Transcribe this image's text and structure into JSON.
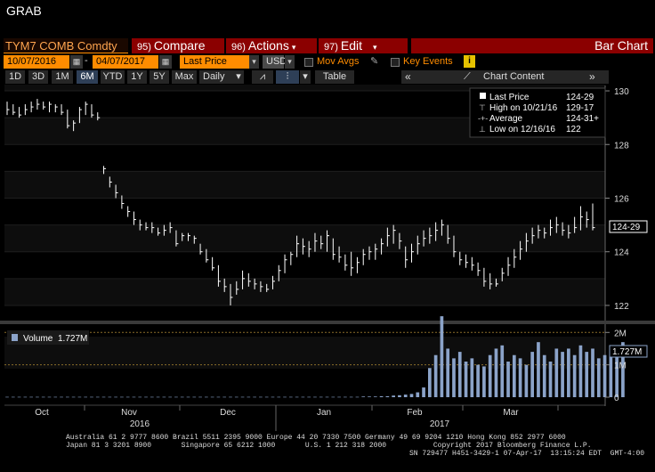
{
  "window": {
    "title": "GRAB"
  },
  "toolbar": {
    "security": "TYM7 COMB Comdty",
    "compare_num": "95)",
    "compare": "Compare",
    "actions_num": "96)",
    "actions": "Actions",
    "edit_num": "97)",
    "edit": "Edit",
    "view": "Bar Chart"
  },
  "controls": {
    "start_date": "10/07/2016",
    "end_date": "04/07/2017",
    "field": "Last Price",
    "currency": "USD",
    "mov_avgs": "Mov Avgs",
    "key_events": "Key Events",
    "info": "i",
    "ranges": [
      "1D",
      "3D",
      "1M",
      "6M",
      "YTD",
      "1Y",
      "5Y",
      "Max"
    ],
    "selected_range": "6M",
    "frequency": "Daily",
    "table": "Table",
    "chart_content": "Chart Content"
  },
  "legend": {
    "last_price_label": "Last Price",
    "last_price_value": "124-29",
    "high_label": "High on 10/21/16",
    "high_value": "129-17",
    "average_label": "Average",
    "average_value": "124-31+",
    "low_label": "Low on 12/16/16",
    "low_value": "122",
    "last_price_tag": "124-29"
  },
  "volume": {
    "label": "Volume",
    "value": "1.727M",
    "tag": "1.727M"
  },
  "footer": {
    "line1": "Australia 61 2 9777 8600 Brazil 5511 2395 9000 Europe 44 20 7330 7500 Germany 49 69 9204 1210 Hong Kong 852 2977 6000",
    "line2": "Japan 81 3 3201 8900       Singapore 65 6212 1000       U.S. 1 212 318 2000           Copyright 2017 Bloomberg Finance L.P.",
    "line3": "SN 729477 H451-3429-1 07-Apr-17  13:15:24 EDT  GMT-4:00"
  },
  "colors": {
    "orange": "#ff8c00",
    "red": "#8b0000",
    "volume_bar": "#8ba3c9",
    "price_bar": "#ffffff"
  },
  "chart_data": {
    "type": "bar",
    "title": "",
    "price_axis": {
      "ticks": [
        "130",
        "128",
        "126",
        "124",
        "122"
      ],
      "ylim": [
        121.5,
        130.2
      ]
    },
    "volume_axis": {
      "ticks": [
        "2M",
        "1M",
        "0"
      ],
      "ylim": [
        0,
        2.2
      ]
    },
    "x_tick_labels": [
      "Oct",
      "Nov",
      "Dec",
      "Jan",
      "Feb",
      "Mar"
    ],
    "year_labels": [
      "2016",
      "2017"
    ],
    "price_series": [
      {
        "h": 129.6,
        "l": 129.1,
        "c": 129.3
      },
      {
        "h": 129.5,
        "l": 129.1,
        "c": 129.2
      },
      {
        "h": 129.4,
        "l": 129.0,
        "c": 129.1
      },
      {
        "h": 129.5,
        "l": 129.1,
        "c": 129.3
      },
      {
        "h": 129.6,
        "l": 129.2,
        "c": 129.4
      },
      {
        "h": 129.7,
        "l": 129.3,
        "c": 129.5
      },
      {
        "h": 129.6,
        "l": 129.3,
        "c": 129.4
      },
      {
        "h": 129.6,
        "l": 129.2,
        "c": 129.5
      },
      {
        "h": 129.5,
        "l": 129.2,
        "c": 129.4
      },
      {
        "h": 129.5,
        "l": 129.1,
        "c": 129.2
      },
      {
        "h": 129.3,
        "l": 128.6,
        "c": 128.7
      },
      {
        "h": 128.9,
        "l": 128.5,
        "c": 128.8
      },
      {
        "h": 129.4,
        "l": 128.8,
        "c": 129.3
      },
      {
        "h": 129.6,
        "l": 129.1,
        "c": 129.5
      },
      {
        "h": 129.5,
        "l": 129.0,
        "c": 129.1
      },
      {
        "h": 129.2,
        "l": 128.9,
        "c": 129.0
      },
      {
        "h": 127.2,
        "l": 126.9,
        "c": 127.1
      },
      {
        "h": 126.8,
        "l": 126.4,
        "c": 126.6
      },
      {
        "h": 126.5,
        "l": 126.0,
        "c": 126.2
      },
      {
        "h": 126.1,
        "l": 125.6,
        "c": 125.8
      },
      {
        "h": 125.7,
        "l": 125.3,
        "c": 125.5
      },
      {
        "h": 125.5,
        "l": 125.0,
        "c": 125.2
      },
      {
        "h": 125.2,
        "l": 124.8,
        "c": 125.0
      },
      {
        "h": 125.1,
        "l": 124.8,
        "c": 124.9
      },
      {
        "h": 125.1,
        "l": 124.7,
        "c": 124.9
      },
      {
        "h": 124.9,
        "l": 124.6,
        "c": 124.7
      },
      {
        "h": 125.0,
        "l": 124.6,
        "c": 124.8
      },
      {
        "h": 125.1,
        "l": 124.7,
        "c": 124.9
      },
      {
        "h": 124.8,
        "l": 124.2,
        "c": 124.3
      },
      {
        "h": 124.7,
        "l": 124.4,
        "c": 124.6
      },
      {
        "h": 124.7,
        "l": 124.4,
        "c": 124.6
      },
      {
        "h": 124.6,
        "l": 124.3,
        "c": 124.5
      },
      {
        "h": 124.3,
        "l": 123.9,
        "c": 124.0
      },
      {
        "h": 124.1,
        "l": 123.6,
        "c": 123.7
      },
      {
        "h": 123.8,
        "l": 123.3,
        "c": 123.4
      },
      {
        "h": 123.5,
        "l": 122.7,
        "c": 122.9
      },
      {
        "h": 123.0,
        "l": 122.5,
        "c": 122.7
      },
      {
        "h": 122.8,
        "l": 122.0,
        "c": 122.3
      },
      {
        "h": 122.9,
        "l": 122.4,
        "c": 122.6
      },
      {
        "h": 123.3,
        "l": 122.6,
        "c": 123.0
      },
      {
        "h": 123.2,
        "l": 122.7,
        "c": 122.9
      },
      {
        "h": 123.0,
        "l": 122.6,
        "c": 122.8
      },
      {
        "h": 122.9,
        "l": 122.5,
        "c": 122.7
      },
      {
        "h": 122.8,
        "l": 122.5,
        "c": 122.6
      },
      {
        "h": 123.1,
        "l": 122.6,
        "c": 122.9
      },
      {
        "h": 123.5,
        "l": 122.9,
        "c": 123.3
      },
      {
        "h": 123.9,
        "l": 123.2,
        "c": 123.7
      },
      {
        "h": 124.0,
        "l": 123.5,
        "c": 123.9
      },
      {
        "h": 124.6,
        "l": 123.8,
        "c": 124.3
      },
      {
        "h": 124.5,
        "l": 123.9,
        "c": 124.2
      },
      {
        "h": 124.4,
        "l": 123.8,
        "c": 124.1
      },
      {
        "h": 124.7,
        "l": 124.0,
        "c": 124.4
      },
      {
        "h": 124.6,
        "l": 124.1,
        "c": 124.3
      },
      {
        "h": 124.8,
        "l": 124.0,
        "c": 124.6
      },
      {
        "h": 124.5,
        "l": 123.7,
        "c": 123.9
      },
      {
        "h": 124.2,
        "l": 123.6,
        "c": 123.8
      },
      {
        "h": 123.9,
        "l": 123.3,
        "c": 123.5
      },
      {
        "h": 124.0,
        "l": 123.1,
        "c": 123.4
      },
      {
        "h": 123.8,
        "l": 123.2,
        "c": 123.6
      },
      {
        "h": 124.1,
        "l": 123.5,
        "c": 123.9
      },
      {
        "h": 124.2,
        "l": 123.7,
        "c": 124.0
      },
      {
        "h": 124.3,
        "l": 123.7,
        "c": 124.1
      },
      {
        "h": 124.5,
        "l": 123.9,
        "c": 124.3
      },
      {
        "h": 124.9,
        "l": 124.2,
        "c": 124.6
      },
      {
        "h": 125.0,
        "l": 124.3,
        "c": 124.8
      },
      {
        "h": 124.7,
        "l": 124.1,
        "c": 124.4
      },
      {
        "h": 124.2,
        "l": 123.4,
        "c": 123.7
      },
      {
        "h": 124.3,
        "l": 123.6,
        "c": 124.0
      },
      {
        "h": 124.6,
        "l": 123.9,
        "c": 124.3
      },
      {
        "h": 124.8,
        "l": 124.2,
        "c": 124.5
      },
      {
        "h": 124.9,
        "l": 124.3,
        "c": 124.6
      },
      {
        "h": 125.1,
        "l": 124.4,
        "c": 124.8
      },
      {
        "h": 125.2,
        "l": 124.6,
        "c": 125.0
      },
      {
        "h": 125.0,
        "l": 124.3,
        "c": 124.5
      },
      {
        "h": 124.6,
        "l": 123.8,
        "c": 124.0
      },
      {
        "h": 124.0,
        "l": 123.5,
        "c": 123.7
      },
      {
        "h": 123.9,
        "l": 123.4,
        "c": 123.6
      },
      {
        "h": 123.8,
        "l": 123.3,
        "c": 123.5
      },
      {
        "h": 123.6,
        "l": 123.1,
        "c": 123.3
      },
      {
        "h": 123.4,
        "l": 122.7,
        "c": 122.9
      },
      {
        "h": 123.2,
        "l": 122.6,
        "c": 122.8
      },
      {
        "h": 123.0,
        "l": 122.7,
        "c": 122.8
      },
      {
        "h": 123.4,
        "l": 122.9,
        "c": 123.2
      },
      {
        "h": 123.8,
        "l": 123.1,
        "c": 123.5
      },
      {
        "h": 124.1,
        "l": 123.4,
        "c": 123.8
      },
      {
        "h": 124.4,
        "l": 123.7,
        "c": 124.1
      },
      {
        "h": 124.7,
        "l": 124.0,
        "c": 124.4
      },
      {
        "h": 124.9,
        "l": 124.3,
        "c": 124.6
      },
      {
        "h": 125.0,
        "l": 124.5,
        "c": 124.8
      },
      {
        "h": 124.9,
        "l": 124.5,
        "c": 124.7
      },
      {
        "h": 125.2,
        "l": 124.6,
        "c": 124.9
      },
      {
        "h": 125.3,
        "l": 124.7,
        "c": 125.0
      },
      {
        "h": 125.1,
        "l": 124.6,
        "c": 124.8
      },
      {
        "h": 125.0,
        "l": 124.5,
        "c": 124.7
      },
      {
        "h": 125.3,
        "l": 124.7,
        "c": 124.9
      },
      {
        "h": 125.7,
        "l": 124.8,
        "c": 125.3
      },
      {
        "h": 125.5,
        "l": 124.9,
        "c": 125.2
      },
      {
        "h": 125.8,
        "l": 124.8,
        "c": 124.9
      }
    ],
    "volume_series": [
      0.01,
      0.01,
      0.01,
      0.01,
      0.01,
      0.01,
      0.01,
      0.01,
      0.01,
      0.01,
      0.01,
      0.01,
      0.01,
      0.01,
      0.01,
      0.01,
      0.01,
      0.01,
      0.01,
      0.01,
      0.01,
      0.01,
      0.01,
      0.01,
      0.01,
      0.01,
      0.01,
      0.01,
      0.01,
      0.01,
      0.01,
      0.01,
      0.01,
      0.01,
      0.01,
      0.01,
      0.01,
      0.01,
      0.01,
      0.01,
      0.01,
      0.01,
      0.01,
      0.01,
      0.01,
      0.01,
      0.01,
      0.01,
      0.01,
      0.01,
      0.01,
      0.01,
      0.01,
      0.01,
      0.01,
      0.01,
      0.01,
      0.01,
      0.01,
      0.02,
      0.02,
      0.02,
      0.03,
      0.03,
      0.05,
      0.06,
      0.08,
      0.1,
      0.15,
      0.3,
      0.9,
      1.3,
      2.5,
      1.5,
      1.2,
      1.4,
      1.1,
      1.2,
      1.0,
      0.95,
      1.3,
      1.5,
      1.6,
      1.1,
      1.3,
      1.2,
      1.0,
      1.4,
      1.7,
      1.3,
      1.1,
      1.5,
      1.4,
      1.5,
      1.3,
      1.6,
      1.4,
      1.5,
      1.2,
      1.3,
      1.5,
      1.4,
      1.7
    ]
  }
}
